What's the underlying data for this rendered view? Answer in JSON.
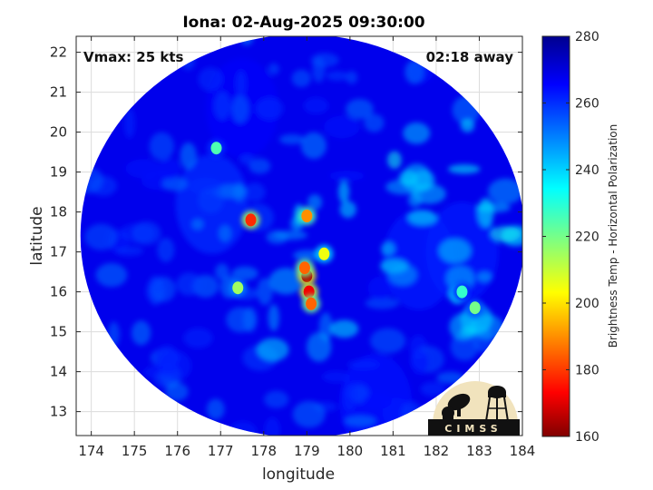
{
  "title": "Iona: 02-Aug-2025 09:30:00",
  "vmax_label": "Vmax: 25 kts",
  "time_away_label": "02:18 away",
  "xlabel": "longitude",
  "ylabel": "latitude",
  "colorbar_label": "Brightness Temp - Horizontal Polarization",
  "logo_text": "CIMSS",
  "x_ticks": [
    "174",
    "175",
    "176",
    "177",
    "178",
    "179",
    "180",
    "181",
    "182",
    "183",
    "184"
  ],
  "y_ticks": [
    "13",
    "14",
    "15",
    "16",
    "17",
    "18",
    "19",
    "20",
    "21",
    "22"
  ],
  "cb_ticks": [
    "160",
    "180",
    "200",
    "220",
    "240",
    "260",
    "280"
  ],
  "map_data": {
    "type": "heatmap",
    "xlim": [
      173.65,
      184.0
    ],
    "ylim": [
      12.4,
      22.4
    ],
    "clim": [
      160,
      280
    ],
    "colormap": "jet",
    "swath_center": [
      178.9,
      17.4
    ],
    "swath_radius_deg": 5.15,
    "background_temp": 268,
    "features": [
      {
        "type": "core",
        "lon": 179.0,
        "lat": 16.4,
        "temp": 165
      },
      {
        "type": "core",
        "lon": 179.05,
        "lat": 16.0,
        "temp": 172
      },
      {
        "type": "core",
        "lon": 179.1,
        "lat": 15.7,
        "temp": 185
      },
      {
        "type": "core",
        "lon": 178.95,
        "lat": 16.6,
        "temp": 185
      },
      {
        "type": "core",
        "lon": 177.7,
        "lat": 17.8,
        "temp": 178
      },
      {
        "type": "core",
        "lon": 179.0,
        "lat": 17.9,
        "temp": 190
      },
      {
        "type": "core",
        "lon": 179.4,
        "lat": 16.95,
        "temp": 205
      },
      {
        "type": "core",
        "lon": 177.4,
        "lat": 16.1,
        "temp": 215
      },
      {
        "type": "core",
        "lon": 176.9,
        "lat": 19.6,
        "temp": 225
      },
      {
        "type": "core",
        "lon": 182.9,
        "lat": 15.6,
        "temp": 220
      },
      {
        "type": "core",
        "lon": 182.6,
        "lat": 16.0,
        "temp": 228
      }
    ]
  },
  "colors": {
    "frame": "#262626",
    "grid": "#dcdcdc"
  }
}
